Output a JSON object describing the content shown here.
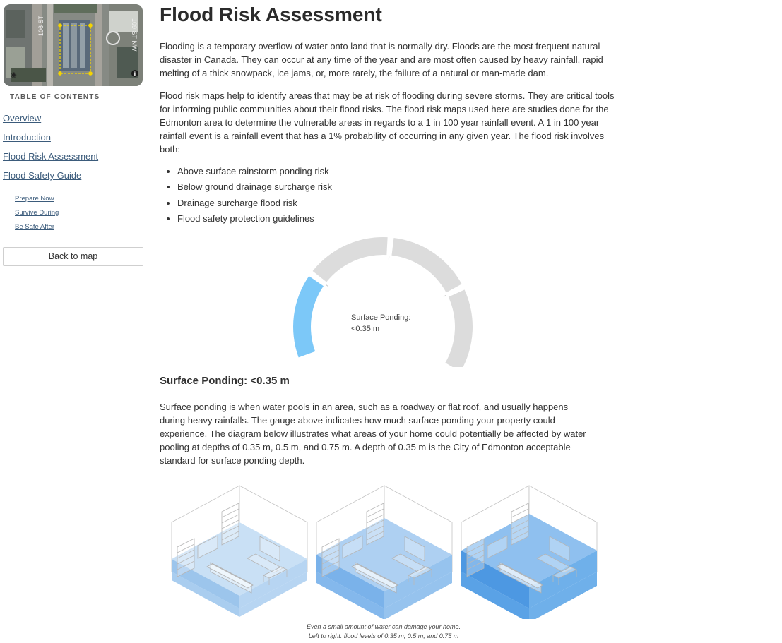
{
  "sidebar": {
    "toc_heading": "TABLE OF CONTENTS",
    "items": [
      "Overview",
      "Introduction",
      "Flood Risk Assessment",
      "Flood Safety Guide"
    ],
    "subitems": [
      "Prepare Now",
      "Survive During",
      "Be Safe After"
    ],
    "back_button": "Back to map",
    "map_labels": {
      "street_a": "106 ST",
      "street_b": "109 ST NW"
    }
  },
  "main": {
    "title": "Flood Risk Assessment",
    "para1": "Flooding is a temporary overflow of water onto land that is normally dry. Floods are the most frequent natural disaster in Canada. They can occur at any time of the year and are most often caused by heavy rainfall, rapid melting of a thick snowpack, ice jams, or, more rarely, the failure of a natural or man-made dam.",
    "para2": "Flood risk maps help to identify areas that may be at risk of flooding during severe storms. They are critical tools for informing public communities about their flood risks. The flood risk maps used here are studies done for the Edmonton area to determine the vulnerable areas in regards to a 1 in 100 year rainfall event. A 1 in 100 year rainfall event is a rainfall event that has a 1% probability of occurring in any given year. The flood risk involves both:",
    "bullets": [
      "Above surface rainstorm ponding risk",
      "Below ground drainage surcharge risk",
      "Drainage surcharge flood risk",
      "Flood safety protection guidelines"
    ],
    "gauge": {
      "label_line1": "Surface Ponding:",
      "label_line2": "<0.35 m",
      "active_segment": 1,
      "total_segments": 4,
      "active_color": "#7cc8f8",
      "inactive_color": "#dcdcdc"
    },
    "subheading": "Surface Ponding: <0.35 m",
    "para3": "Surface ponding is when water pools in an area, such as a roadway or flat roof, and usually happens during heavy rainfalls. The gauge above indicates how much surface ponding your property could experience. The diagram below illustrates what areas of your home could potentially be affected by water pooling at depths of 0.35 m, 0.5 m, and 0.75 m. A depth of 0.35 m is the City of Edmonton acceptable standard for surface ponding depth.",
    "caption_line1": "Even a small amount of water can damage your home.",
    "caption_line2": "Left to right: flood levels of 0.35 m, 0.5 m, and 0.75 m"
  }
}
